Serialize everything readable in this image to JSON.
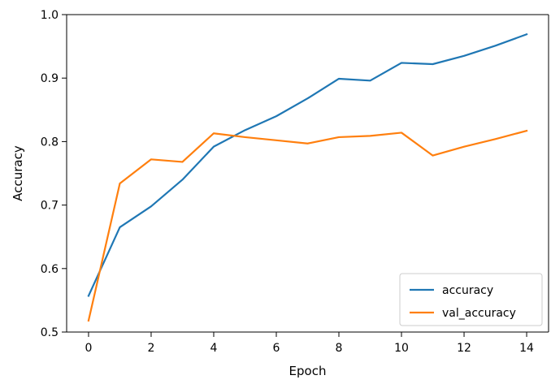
{
  "chart_data": {
    "type": "line",
    "title": "",
    "xlabel": "Epoch",
    "ylabel": "Accuracy",
    "xlim": [
      -0.7,
      14.7
    ],
    "ylim": [
      0.5,
      1.0
    ],
    "xticks": [
      0,
      2,
      4,
      6,
      8,
      10,
      12,
      14
    ],
    "yticks": [
      0.5,
      0.6,
      0.7,
      0.8,
      0.9,
      1.0
    ],
    "xtick_labels": [
      "0",
      "2",
      "4",
      "6",
      "8",
      "10",
      "12",
      "14"
    ],
    "ytick_labels": [
      "0.5",
      "0.6",
      "0.7",
      "0.8",
      "0.9",
      "1.0"
    ],
    "grid": false,
    "legend_position": "lower-right",
    "x": [
      0,
      1,
      2,
      3,
      4,
      5,
      6,
      7,
      8,
      9,
      10,
      11,
      12,
      13,
      14
    ],
    "series": [
      {
        "name": "accuracy",
        "color": "#1f77b4",
        "values": [
          0.557,
          0.665,
          0.698,
          0.74,
          0.792,
          0.818,
          0.84,
          0.868,
          0.899,
          0.896,
          0.924,
          0.922,
          0.935,
          0.951,
          0.969
        ]
      },
      {
        "name": "val_accuracy",
        "color": "#ff7f0e",
        "values": [
          0.518,
          0.734,
          0.772,
          0.768,
          0.813,
          0.807,
          0.802,
          0.797,
          0.807,
          0.809,
          0.814,
          0.778,
          0.792,
          0.804,
          0.817
        ]
      }
    ]
  }
}
